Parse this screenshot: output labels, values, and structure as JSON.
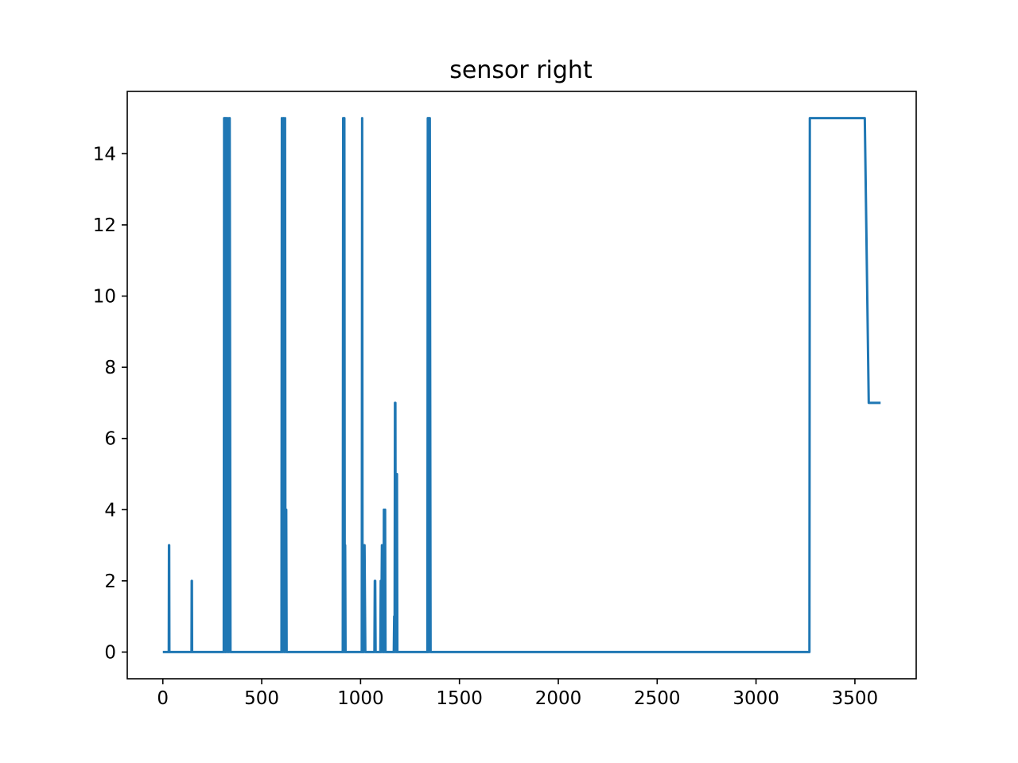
{
  "chart_data": {
    "type": "line",
    "title": "sensor right",
    "xlabel": "",
    "ylabel": "",
    "xlim": [
      -180,
      3810
    ],
    "ylim": [
      -0.75,
      15.75
    ],
    "x_ticks": [
      0,
      500,
      1000,
      1500,
      2000,
      2500,
      3000,
      3500
    ],
    "x_tick_labels": [
      "0",
      "500",
      "1000",
      "1500",
      "2000",
      "2500",
      "3000",
      "3500"
    ],
    "y_ticks": [
      0,
      2,
      4,
      6,
      8,
      10,
      12,
      14
    ],
    "y_tick_labels": [
      "0",
      "2",
      "4",
      "6",
      "8",
      "10",
      "12",
      "14"
    ],
    "grid": false,
    "series": [
      {
        "color": "#1f77b4",
        "x": [
          0,
          30,
          31,
          32,
          33,
          145,
          146,
          147,
          148,
          308,
          310,
          314,
          316,
          318,
          322,
          326,
          330,
          334,
          338,
          342,
          346,
          600,
          602,
          606,
          610,
          614,
          618,
          620,
          624,
          626,
          910,
          912,
          914,
          918,
          920,
          922,
          924,
          1006,
          1008,
          1010,
          1016,
          1018,
          1020,
          1024,
          1026,
          1070,
          1072,
          1074,
          1076,
          1100,
          1102,
          1104,
          1108,
          1110,
          1112,
          1116,
          1118,
          1120,
          1124,
          1126,
          1168,
          1170,
          1172,
          1174,
          1176,
          1178,
          1180,
          1182,
          1184,
          1186,
          1338,
          1340,
          1342,
          1346,
          1348,
          1350,
          1354,
          1356,
          3270,
          3272,
          3550,
          3570,
          3630
        ],
        "y": [
          0,
          0,
          3,
          3,
          0,
          0,
          2,
          2,
          0,
          0,
          15,
          0,
          15,
          0,
          15,
          0,
          15,
          0,
          15,
          0,
          0,
          0,
          15,
          0,
          15,
          0,
          15,
          0,
          4,
          0,
          0,
          15,
          0,
          15,
          0,
          3,
          0,
          0,
          15,
          0,
          0,
          3,
          3,
          0,
          0,
          0,
          2,
          2,
          0,
          0,
          2,
          0,
          3,
          0,
          3,
          0,
          4,
          0,
          4,
          0,
          0,
          1,
          0,
          7,
          7,
          0,
          5,
          0,
          5,
          0,
          0,
          15,
          0,
          15,
          0,
          15,
          0,
          0,
          0,
          15,
          15,
          7,
          7
        ]
      }
    ]
  }
}
